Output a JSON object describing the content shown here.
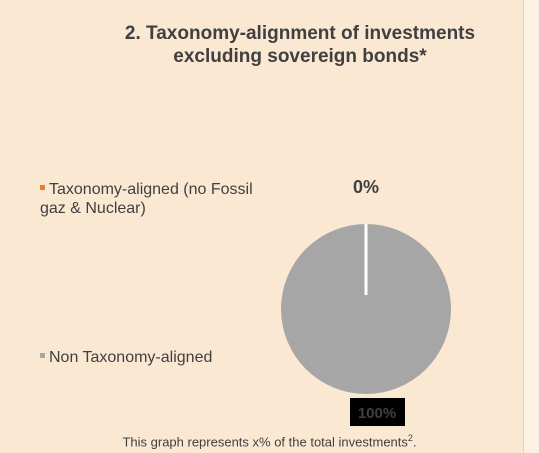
{
  "title_line1": "2. Taxonomy-alignment of investments",
  "title_line2": "excluding sovereign bonds*",
  "footnote": {
    "text": "This graph represents x% of the total investments",
    "superscript": "2",
    "suffix": "."
  },
  "colors": {
    "aligned": "#e97c30",
    "non_aligned": "#a6a6a6",
    "label_box": "#000000",
    "label_text_dark": "#404040"
  },
  "chart_data": {
    "type": "pie",
    "title": "2. Taxonomy-alignment of investments excluding sovereign bonds*",
    "legend_position": "left",
    "slices": [
      {
        "label": "Taxonomy-aligned (no Fossil gaz & Nuclear)",
        "value": 0,
        "display": "0%",
        "color": "#e97c30"
      },
      {
        "label": "Non Taxonomy-aligned",
        "value": 100,
        "display": "100%",
        "color": "#a6a6a6"
      }
    ]
  }
}
